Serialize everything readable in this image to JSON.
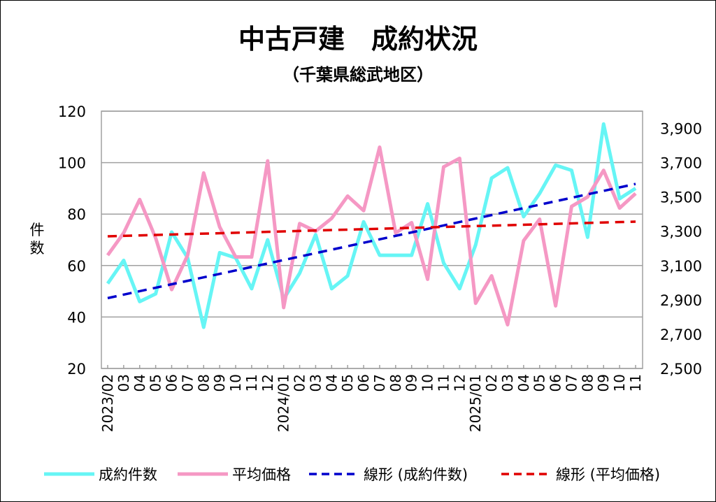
{
  "chart_data": {
    "type": "line",
    "title": "中古戸建　成約状況",
    "subtitle": "（千葉県総武地区）",
    "ylabel": "件数",
    "ylim": [
      20,
      120
    ],
    "yticks": [
      20,
      40,
      60,
      80,
      100,
      120
    ],
    "y2lim": [
      2500,
      4000
    ],
    "y2ticks": [
      "2,500",
      "2,700",
      "2,900",
      "3,100",
      "3,300",
      "3,500",
      "3,700",
      "3,900"
    ],
    "y2tick_values": [
      2500,
      2700,
      2900,
      3100,
      3300,
      3500,
      3700,
      3900
    ],
    "grid": true,
    "legend_position": "bottom",
    "categories": [
      "2023/02",
      "03",
      "04",
      "05",
      "06",
      "07",
      "08",
      "09",
      "10",
      "11",
      "12",
      "2024/01",
      "02",
      "03",
      "04",
      "05",
      "06",
      "07",
      "08",
      "09",
      "10",
      "11",
      "12",
      "2025/01",
      "02",
      "03",
      "04",
      "05",
      "06",
      "07",
      "08",
      "09",
      "10",
      "11"
    ],
    "series": [
      {
        "name": "成約件数",
        "axis": "left",
        "color": "#66f5f5",
        "values": [
          53,
          62,
          46,
          49,
          73,
          63,
          36,
          65,
          63,
          51,
          70,
          47,
          57,
          72,
          51,
          56,
          77,
          64,
          64,
          64,
          84,
          61,
          51,
          68,
          94,
          98,
          79,
          88,
          99,
          97,
          71,
          115,
          86,
          90
        ]
      },
      {
        "name": "平均価格",
        "axis": "right",
        "color": "#f598c4",
        "values": [
          3160,
          3290,
          3485,
          3260,
          2960,
          3160,
          3640,
          3325,
          3150,
          3150,
          3710,
          2855,
          3345,
          3300,
          3375,
          3505,
          3420,
          3790,
          3290,
          3350,
          3020,
          3675,
          3725,
          2880,
          3040,
          2755,
          3245,
          3370,
          2865,
          3445,
          3500,
          3655,
          3435,
          3520
        ]
      }
    ],
    "trendlines": [
      {
        "name": "線形 (成約件数)",
        "of": "成約件数",
        "color": "#0000cc"
      },
      {
        "name": "線形 (平均価格)",
        "of": "平均価格",
        "color": "#e00000"
      }
    ]
  }
}
